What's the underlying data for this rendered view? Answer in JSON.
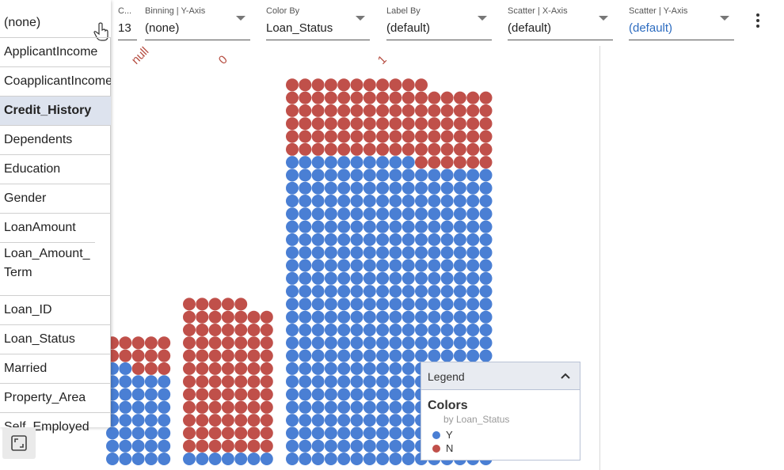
{
  "dropdown": {
    "selected": "(none)",
    "items": [
      {
        "label": "ApplicantIncome"
      },
      {
        "label": "CoapplicantIncome"
      },
      {
        "label": "Credit_History"
      },
      {
        "label": "Dependents"
      },
      {
        "label": "Education"
      },
      {
        "label": "Gender"
      },
      {
        "label": "LoanAmount"
      },
      {
        "label": "Loan_Amount_Term"
      },
      {
        "label": "Loan_ID"
      },
      {
        "label": "Loan_Status"
      },
      {
        "label": "Married"
      },
      {
        "label": "Property_Area"
      },
      {
        "label": "Self_Employed"
      }
    ],
    "active_index": 2
  },
  "toolbar": {
    "count": {
      "label": "C...",
      "value": "13"
    },
    "binning_y": {
      "label": "Binning | Y-Axis",
      "value": "(none)"
    },
    "color_by": {
      "label": "Color By",
      "value": "Loan_Status"
    },
    "label_by": {
      "label": "Label By",
      "value": "(default)"
    },
    "scatter_x": {
      "label": "Scatter | X-Axis",
      "value": "(default)"
    },
    "scatter_y": {
      "label": "Scatter | Y-Axis",
      "value": "(default)"
    }
  },
  "legend": {
    "title": "Legend",
    "heading": "Colors",
    "subtitle": "by Loan_Status",
    "entries": [
      {
        "label": "Y",
        "color": "#4a7fd4"
      },
      {
        "label": "N",
        "color": "#c0504a"
      }
    ]
  },
  "colors": {
    "Y": "#4a7fd4",
    "N": "#c0504a"
  },
  "chart_data": {
    "type": "unit-dot",
    "categories": [
      "null",
      "0",
      "1"
    ],
    "series": [
      {
        "name": "Y",
        "values": [
          37,
          7,
          378
        ]
      },
      {
        "name": "N",
        "values": [
          13,
          82,
          97
        ]
      }
    ]
  }
}
